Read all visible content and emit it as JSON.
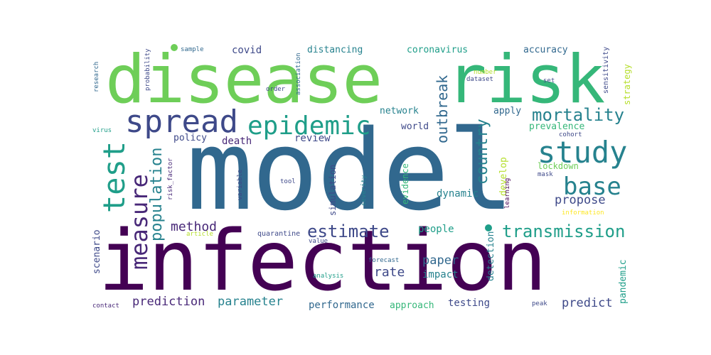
{
  "colors": {
    "dark_purple": "#440154",
    "purple": "#482878",
    "indigo": "#3e4989",
    "blue": "#31688e",
    "teal_blue": "#26828e",
    "teal": "#1f9e89",
    "green": "#35b779",
    "light_green": "#6ece58",
    "lime": "#b5de2b",
    "yellow": "#fde725"
  },
  "words": {
    "model": "model",
    "infection": "infection",
    "disease": "disease",
    "risk": "risk",
    "spread": "spread",
    "epidemic": "epidemic",
    "study": "study",
    "test": "test",
    "measure": "measure",
    "base": "base",
    "mortality": "mortality",
    "transmission": "transmission",
    "estimate": "estimate",
    "population": "population",
    "country": "country",
    "outbreak": "outbreak",
    "method": "method",
    "covid": "covid",
    "distancing": "distancing",
    "coronavirus": "coronavirus",
    "accuracy": "accuracy",
    "propose": "propose",
    "rate": "rate",
    "paper": "paper",
    "impact": "impact",
    "people": "people",
    "prediction": "prediction",
    "parameter": "parameter",
    "performance": "performance",
    "approach": "approach",
    "testing": "testing",
    "predict": "predict",
    "review": "review",
    "death": "death",
    "policy": "policy",
    "network": "network",
    "world": "world",
    "apply": "apply",
    "prevalence": "prevalence",
    "lockdown": "lockdown",
    "develop": "develop",
    "dynamic": "dynamic",
    "evidence": "evidence",
    "simulation": "simulation",
    "scenario": "scenario",
    "detection": "detection",
    "pandemic": "pandemic",
    "strategy": "strategy",
    "sensitivity": "sensitivity",
    "cohort": "cohort",
    "mask": "mask",
    "information": "information",
    "learning": "learning",
    "peak": "peak",
    "forecast": "forecast",
    "analysis": "analysis",
    "quarantine": "quarantine",
    "value": "value",
    "article": "article",
    "contact": "contact",
    "virus": "virus",
    "research": "research",
    "probability": "probability",
    "sample": "sample",
    "association": "association",
    "order": "order",
    "number": "number",
    "dataset": "dataset",
    "set": "set",
    "risk_factor": "risk_factor",
    "variable": "variable",
    "tool": "tool",
    "severity": "severity"
  }
}
